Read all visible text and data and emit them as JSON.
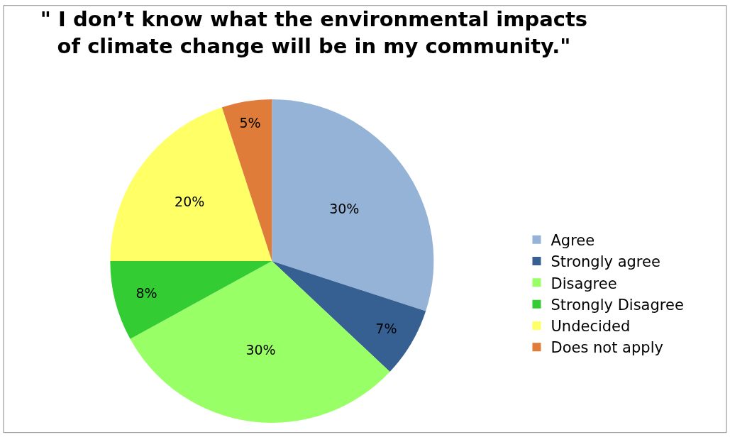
{
  "chart_data": {
    "type": "pie",
    "title": "\" I don’t know what the environmental impacts\nof climate change will be in my community.\"",
    "categories": [
      "Agree",
      "Strongly agree",
      "Disagree",
      "Strongly Disagree",
      "Undecided",
      "Does not apply"
    ],
    "values": [
      30,
      7,
      30,
      8,
      20,
      5
    ],
    "value_labels": [
      "30%",
      "7%",
      "30%",
      "8%",
      "20%",
      "5%"
    ],
    "colors": [
      "#95b3d7",
      "#376092",
      "#99ff66",
      "#33cc33",
      "#ffff66",
      "#e07c3a"
    ],
    "legend": "right"
  }
}
